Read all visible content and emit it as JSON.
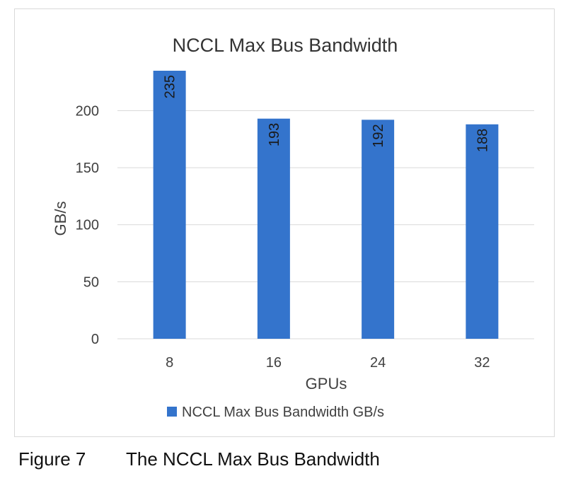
{
  "chart_data": {
    "type": "bar",
    "title": "NCCL Max Bus Bandwidth",
    "xlabel": "GPUs",
    "ylabel": "GB/s",
    "categories": [
      "8",
      "16",
      "24",
      "32"
    ],
    "series": [
      {
        "name": "NCCL Max Bus Bandwidth GB/s",
        "values": [
          235,
          193,
          192,
          188
        ],
        "color": "#3474cc"
      }
    ],
    "y_ticks": [
      0,
      50,
      100,
      150,
      200
    ],
    "ylim": [
      0,
      235
    ],
    "grid": true,
    "legend": "bottom",
    "data_labels": "rotated-inside-top"
  },
  "caption": {
    "label": "Figure 7",
    "text": "The NCCL Max Bus Bandwidth"
  }
}
